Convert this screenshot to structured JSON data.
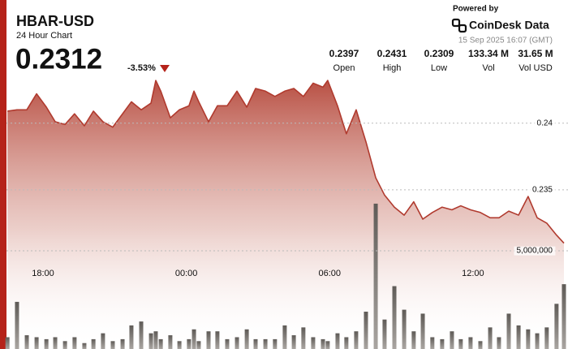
{
  "header": {
    "title": "HBAR-USD",
    "subtitle": "24 Hour Chart",
    "price": "0.2312",
    "change": "-3.53%",
    "powered_by": "Powered by",
    "brand": "CoinDesk Data",
    "timestamp": "15 Sep 2025 16:07 (GMT)"
  },
  "stats": [
    {
      "value": "0.2397",
      "label": "Open"
    },
    {
      "value": "0.2431",
      "label": "High"
    },
    {
      "value": "0.2309",
      "label": "Low"
    },
    {
      "value": "133.34 M",
      "label": "Vol"
    },
    {
      "value": "31.65 M",
      "label": "Vol USD"
    }
  ],
  "chart_data": {
    "type": "line",
    "x": [
      16.51,
      16.91,
      17.32,
      17.73,
      18.14,
      18.51,
      18.92,
      19.32,
      19.73,
      20.11,
      20.51,
      20.92,
      21.33,
      21.7,
      22.11,
      22.52,
      22.72,
      22.93,
      23.33,
      23.71,
      24.11,
      24.32,
      24.52,
      24.93,
      25.3,
      25.71,
      26.12,
      26.53,
      26.9,
      27.31,
      27.71,
      28.12,
      28.5,
      28.9,
      29.31,
      29.72,
      29.92,
      30.33,
      30.7,
      31.11,
      31.52,
      31.93,
      32.3,
      32.71,
      33.12,
      33.52,
      33.9,
      34.3,
      34.71,
      35.12,
      35.49,
      35.9,
      36.31,
      36.72,
      37.09,
      37.5,
      37.91,
      38.31,
      38.69,
      39.09,
      39.5,
      39.81
    ],
    "series": [
      {
        "name": "Price",
        "color": "#b03a2e",
        "values": [
          0.2409,
          0.241,
          0.241,
          0.2422,
          0.2412,
          0.2401,
          0.2399,
          0.2407,
          0.2398,
          0.2409,
          0.2401,
          0.2397,
          0.2407,
          0.2416,
          0.241,
          0.2415,
          0.2432,
          0.2424,
          0.2404,
          0.241,
          0.2413,
          0.2424,
          0.2416,
          0.2401,
          0.2413,
          0.2413,
          0.2424,
          0.2412,
          0.2426,
          0.2424,
          0.242,
          0.2424,
          0.2426,
          0.242,
          0.243,
          0.2427,
          0.2432,
          0.2413,
          0.2392,
          0.241,
          0.2386,
          0.2359,
          0.2346,
          0.2337,
          0.2331,
          0.2341,
          0.2328,
          0.2333,
          0.2337,
          0.2335,
          0.2338,
          0.2335,
          0.2333,
          0.2329,
          0.2329,
          0.2334,
          0.2331,
          0.2345,
          0.2329,
          0.2325,
          0.2316,
          0.231
        ]
      },
      {
        "name": "Volume",
        "color": "#7a7672",
        "type": "bar",
        "axis": "y2",
        "values": [
          600000,
          2400000,
          700000,
          600000,
          500000,
          600000,
          400000,
          600000,
          300000,
          500000,
          800000,
          400000,
          500000,
          1200000,
          1400000,
          800000,
          900000,
          500000,
          700000,
          400000,
          500000,
          1000000,
          400000,
          900000,
          900000,
          500000,
          600000,
          1000000,
          500000,
          500000,
          500000,
          1200000,
          700000,
          1100000,
          600000,
          500000,
          400000,
          800000,
          600000,
          900000,
          1900000,
          7400000,
          1500000,
          3200000,
          2000000,
          900000,
          1800000,
          600000,
          500000,
          900000,
          500000,
          600000,
          400000,
          1100000,
          600000,
          1800000,
          1200000,
          1000000,
          800000,
          1100000,
          2300000,
          3300000
        ]
      }
    ],
    "xlim": [
      16.47,
      39.98
    ],
    "xticks": [
      {
        "value": 18,
        "label": "18:00"
      },
      {
        "value": 24,
        "label": "00:00"
      },
      {
        "value": 30,
        "label": "06:00"
      },
      {
        "value": 36,
        "label": "12:00"
      }
    ],
    "ylim": [
      0.23,
      0.244
    ],
    "yticks": [
      0.24,
      0.235
    ],
    "y2lim": [
      0,
      10000000
    ],
    "y2ticks": [
      {
        "value": 5000000,
        "label": "5,000,000"
      }
    ],
    "grid": true
  }
}
